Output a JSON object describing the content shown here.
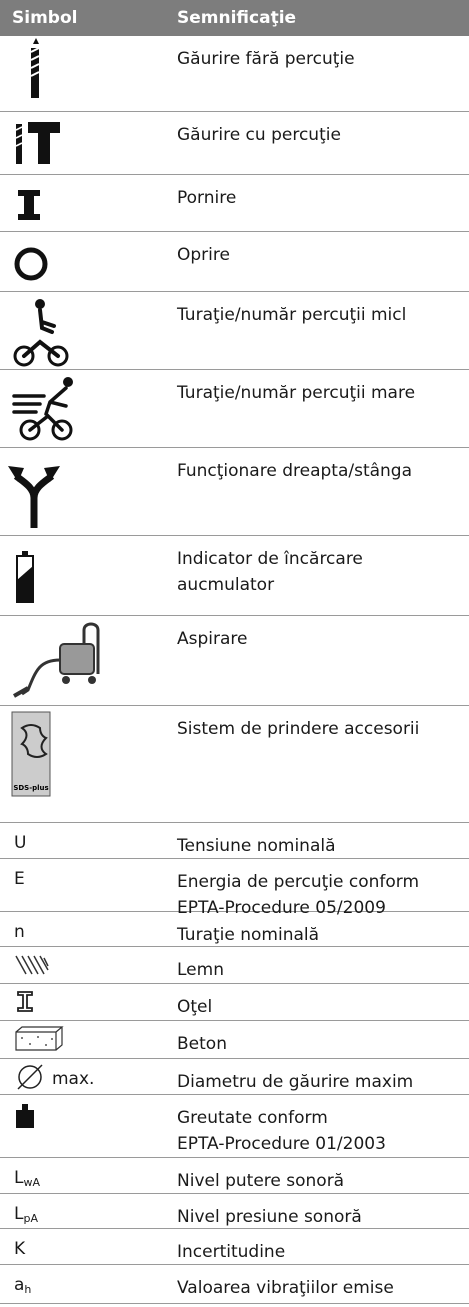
{
  "table": {
    "header": [
      "Simbol",
      "Semnificaţie"
    ],
    "rows": [
      {
        "icon": "drill",
        "meaning": [
          "Găurire fără percuţie"
        ]
      },
      {
        "icon": "hammer",
        "meaning": [
          "Găurire cu percuţie"
        ]
      },
      {
        "icon": "on",
        "meaning": [
          "Pornire"
        ]
      },
      {
        "icon": "off",
        "meaning": [
          "Oprire"
        ]
      },
      {
        "icon": "slow",
        "meaning": [
          "Turaţie/număr percuţii micl"
        ]
      },
      {
        "icon": "fast",
        "meaning": [
          "Turaţie/număr percuţii mare"
        ]
      },
      {
        "icon": "fork",
        "meaning": [
          "Funcţionare dreapta/stânga"
        ]
      },
      {
        "icon": "battery",
        "meaning": [
          "Indicator de încărcare",
          "aucmulator"
        ]
      },
      {
        "icon": "vacuum",
        "meaning": [
          "Aspirare"
        ]
      },
      {
        "icon": "sds",
        "icon_label": "SDS-plus",
        "meaning": [
          "Sistem de prindere accesorii"
        ]
      },
      {
        "symbol": "U",
        "meaning": [
          "Tensiune nominală"
        ]
      },
      {
        "symbol": "E",
        "meaning": [
          "Energia de percuţie conform",
          "EPTA-Procedure 05/2009"
        ]
      },
      {
        "symbol": "n",
        "meaning": [
          "Turaţie nominală"
        ]
      },
      {
        "icon": "wood",
        "meaning": [
          "Lemn"
        ]
      },
      {
        "icon": "steel",
        "meaning": [
          "Oţel"
        ]
      },
      {
        "icon": "concrete",
        "meaning": [
          "Beton"
        ]
      },
      {
        "icon": "diameter",
        "symbol": "max.",
        "meaning": [
          "Diametru de găurire maxim"
        ]
      },
      {
        "icon": "weight",
        "meaning": [
          "Greutate conform",
          "EPTA-Procedure 01/2003"
        ]
      },
      {
        "symbol": "L",
        "symbol_sub": "wA",
        "meaning": [
          "Nivel putere sonoră"
        ]
      },
      {
        "symbol": "L",
        "symbol_sub": "pA",
        "meaning": [
          "Nivel presiune sonoră"
        ]
      },
      {
        "symbol": "K",
        "meaning": [
          "Incertitudine"
        ]
      },
      {
        "symbol": "a",
        "symbol_sub": "h",
        "meaning": [
          "Valoarea vibraţiilor emise"
        ]
      }
    ]
  }
}
